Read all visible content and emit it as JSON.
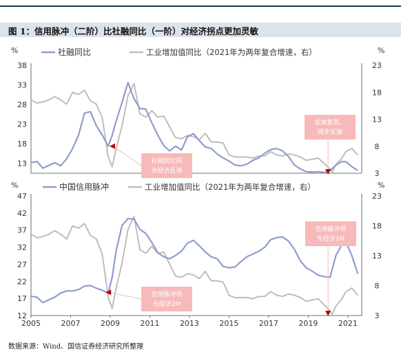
{
  "header": {
    "title": "图 1：信用脉冲（二阶）比社融同比（一阶）对经济拐点更加灵敏"
  },
  "footer": {
    "source": "数据来源：Wind、国信证券经济研究所整理"
  },
  "colors": {
    "blue": "#8e9ccf",
    "gray": "#bdbdbd",
    "annotation_bg": "#f7b9b9",
    "annotation_text": "#ffffff",
    "arrow": "#c00000"
  },
  "chart_data": [
    {
      "type": "line",
      "left_unit": "%",
      "right_unit": "%",
      "left_ylim": [
        10.5,
        38
      ],
      "left_ticks": [
        13,
        18,
        23,
        28,
        33,
        38
      ],
      "right_ylim": [
        3,
        23
      ],
      "right_ticks": [
        3,
        8,
        13,
        18,
        23
      ],
      "xlim": [
        2005,
        2021.7
      ],
      "grid": false,
      "legend_placement": "top",
      "series": [
        {
          "name": "社融同比",
          "axis": "left",
          "color": "#8e9ccf",
          "x": [
            2005.0,
            2005.3,
            2005.6,
            2005.9,
            2006.2,
            2006.5,
            2006.8,
            2007.1,
            2007.4,
            2007.7,
            2008.0,
            2008.3,
            2008.6,
            2008.9,
            2009.1,
            2009.3,
            2009.6,
            2009.9,
            2010.2,
            2010.5,
            2010.8,
            2011.1,
            2011.4,
            2011.7,
            2012.0,
            2012.3,
            2012.6,
            2012.9,
            2013.2,
            2013.5,
            2013.8,
            2014.1,
            2014.4,
            2014.7,
            2015.0,
            2015.3,
            2015.6,
            2015.9,
            2016.2,
            2016.5,
            2016.8,
            2017.1,
            2017.4,
            2017.7,
            2018.0,
            2018.3,
            2018.6,
            2018.9,
            2019.2,
            2019.5,
            2019.8,
            2020.1,
            2020.4,
            2020.7,
            2020.9,
            2021.2,
            2021.5
          ],
          "y": [
            13.2,
            13.5,
            11.8,
            12.5,
            13.2,
            12.4,
            14.2,
            16.8,
            20.2,
            25.8,
            26.2,
            22.6,
            20.2,
            17.4,
            20.2,
            23.8,
            28.6,
            33.6,
            29.5,
            27.0,
            26.8,
            23.4,
            20.2,
            17.6,
            16.2,
            17.4,
            16.4,
            19.8,
            20.6,
            18.8,
            17.2,
            16.8,
            15.4,
            14.4,
            13.6,
            12.6,
            12.4,
            12.8,
            13.8,
            14.4,
            15.6,
            16.5,
            16.8,
            16.2,
            14.8,
            12.6,
            11.6,
            10.9,
            10.8,
            10.9,
            10.7,
            11.2,
            12.6,
            13.5,
            13.4,
            12.2,
            11.2
          ]
        },
        {
          "name": "工业增加值同比（2021年为两年复合增速，右）",
          "axis": "right",
          "color": "#bdbdbd",
          "x": [
            2005.0,
            2005.3,
            2005.6,
            2005.9,
            2006.2,
            2006.5,
            2006.8,
            2007.1,
            2007.4,
            2007.7,
            2008.0,
            2008.3,
            2008.6,
            2008.9,
            2009.1,
            2009.3,
            2009.6,
            2009.9,
            2010.2,
            2010.5,
            2010.8,
            2011.1,
            2011.4,
            2011.7,
            2012.0,
            2012.3,
            2012.6,
            2012.9,
            2013.2,
            2013.5,
            2013.8,
            2014.1,
            2014.4,
            2014.7,
            2015.0,
            2015.3,
            2015.6,
            2015.9,
            2016.2,
            2016.5,
            2016.8,
            2017.1,
            2017.4,
            2017.7,
            2018.0,
            2018.3,
            2018.6,
            2018.9,
            2019.2,
            2019.5,
            2019.8,
            2020.1,
            2020.2,
            2020.4,
            2020.7,
            2020.9,
            2021.2,
            2021.5
          ],
          "y": [
            16.6,
            16.0,
            16.2,
            16.6,
            17.2,
            16.6,
            15.8,
            18.0,
            17.6,
            18.4,
            16.4,
            15.8,
            13.2,
            6.0,
            4.2,
            7.6,
            11.8,
            17.4,
            19.6,
            14.0,
            13.4,
            14.6,
            13.4,
            13.6,
            11.6,
            9.6,
            9.4,
            10.0,
            9.8,
            9.2,
            10.4,
            8.8,
            8.8,
            8.6,
            6.4,
            6.0,
            6.0,
            6.0,
            5.8,
            6.2,
            6.2,
            7.0,
            6.4,
            6.2,
            6.6,
            6.4,
            6.0,
            5.4,
            5.6,
            5.8,
            4.8,
            3.8,
            3.2,
            4.6,
            5.8,
            7.0,
            7.6,
            6.4
          ]
        }
      ],
      "annotations": [
        {
          "text": "社融同比同\n步经济反弹",
          "target": [
            2009.0,
            17.4
          ]
        },
        {
          "text": "实体复苏、\n同步反弹",
          "target": [
            2020.0,
            10.5
          ]
        }
      ]
    },
    {
      "type": "line",
      "left_unit": "%",
      "right_unit": "%",
      "left_ylim": [
        12,
        47
      ],
      "left_ticks": [
        12,
        17,
        22,
        27,
        32,
        37,
        42,
        47
      ],
      "right_ylim": [
        3,
        23
      ],
      "right_ticks": [
        3,
        8,
        13,
        18,
        23
      ],
      "xlim": [
        2005,
        2021.7
      ],
      "x_ticks": [
        2005,
        2007,
        2009,
        2011,
        2013,
        2015,
        2017,
        2019,
        2021
      ],
      "grid": false,
      "legend_placement": "top",
      "series": [
        {
          "name": "中国信用脉冲",
          "axis": "left",
          "color": "#8e9ccf",
          "x": [
            2005.0,
            2005.3,
            2005.6,
            2005.9,
            2006.2,
            2006.5,
            2006.8,
            2007.1,
            2007.4,
            2007.7,
            2008.0,
            2008.3,
            2008.6,
            2008.9,
            2009.1,
            2009.3,
            2009.6,
            2009.9,
            2010.2,
            2010.5,
            2010.8,
            2011.1,
            2011.4,
            2011.7,
            2012.0,
            2012.3,
            2012.6,
            2012.9,
            2013.2,
            2013.5,
            2013.8,
            2014.1,
            2014.4,
            2014.7,
            2015.0,
            2015.3,
            2015.6,
            2015.9,
            2016.2,
            2016.5,
            2016.8,
            2017.1,
            2017.4,
            2017.7,
            2018.0,
            2018.3,
            2018.6,
            2018.9,
            2019.2,
            2019.5,
            2019.8,
            2020.1,
            2020.4,
            2020.7,
            2020.9,
            2021.2,
            2021.5
          ],
          "y": [
            17.6,
            17.4,
            15.8,
            16.6,
            17.4,
            18.6,
            19.2,
            19.2,
            19.6,
            20.6,
            20.8,
            20.0,
            19.4,
            18.6,
            23.2,
            31.0,
            38.4,
            40.4,
            40.2,
            37.2,
            36.0,
            33.4,
            30.4,
            29.2,
            28.6,
            29.6,
            30.8,
            33.2,
            34.0,
            32.4,
            30.6,
            29.2,
            28.6,
            26.4,
            26.0,
            26.2,
            27.8,
            29.2,
            30.0,
            30.8,
            32.0,
            34.2,
            34.8,
            35.0,
            33.8,
            31.4,
            28.0,
            26.0,
            25.0,
            23.8,
            23.4,
            23.2,
            29.6,
            32.8,
            33.6,
            29.6,
            24.2
          ]
        },
        {
          "name": "工业增加值同比（2021年为两年复合增速，右）",
          "axis": "right",
          "color": "#bdbdbd",
          "x": [
            2005.0,
            2005.3,
            2005.6,
            2005.9,
            2006.2,
            2006.5,
            2006.8,
            2007.1,
            2007.4,
            2007.7,
            2008.0,
            2008.3,
            2008.6,
            2008.9,
            2009.1,
            2009.3,
            2009.6,
            2009.9,
            2010.2,
            2010.5,
            2010.8,
            2011.1,
            2011.4,
            2011.7,
            2012.0,
            2012.3,
            2012.6,
            2012.9,
            2013.2,
            2013.5,
            2013.8,
            2014.1,
            2014.4,
            2014.7,
            2015.0,
            2015.3,
            2015.6,
            2015.9,
            2016.2,
            2016.5,
            2016.8,
            2017.1,
            2017.4,
            2017.7,
            2018.0,
            2018.3,
            2018.6,
            2018.9,
            2019.2,
            2019.5,
            2019.8,
            2020.1,
            2020.2,
            2020.4,
            2020.7,
            2020.9,
            2021.2,
            2021.5
          ],
          "y": [
            16.6,
            16.0,
            16.2,
            16.6,
            17.2,
            16.6,
            15.8,
            18.0,
            17.6,
            18.4,
            16.4,
            15.8,
            13.2,
            6.0,
            4.2,
            7.6,
            11.8,
            17.4,
            19.6,
            14.0,
            13.4,
            14.6,
            13.4,
            13.6,
            11.6,
            9.6,
            9.4,
            10.0,
            9.8,
            9.2,
            10.4,
            8.8,
            8.8,
            8.6,
            6.4,
            6.0,
            6.0,
            6.0,
            5.8,
            6.2,
            6.2,
            7.0,
            6.4,
            6.2,
            6.6,
            6.4,
            6.0,
            5.4,
            5.6,
            5.8,
            4.8,
            3.8,
            3.2,
            4.6,
            5.8,
            7.0,
            7.6,
            6.4
          ]
        }
      ],
      "annotations": [
        {
          "text": "信用脉冲领\n先经济2M",
          "target": [
            2008.8,
            18.8
          ]
        },
        {
          "text": "信用脉冲领\n先经济1M",
          "target": [
            2020.0,
            12.2
          ]
        }
      ]
    }
  ]
}
